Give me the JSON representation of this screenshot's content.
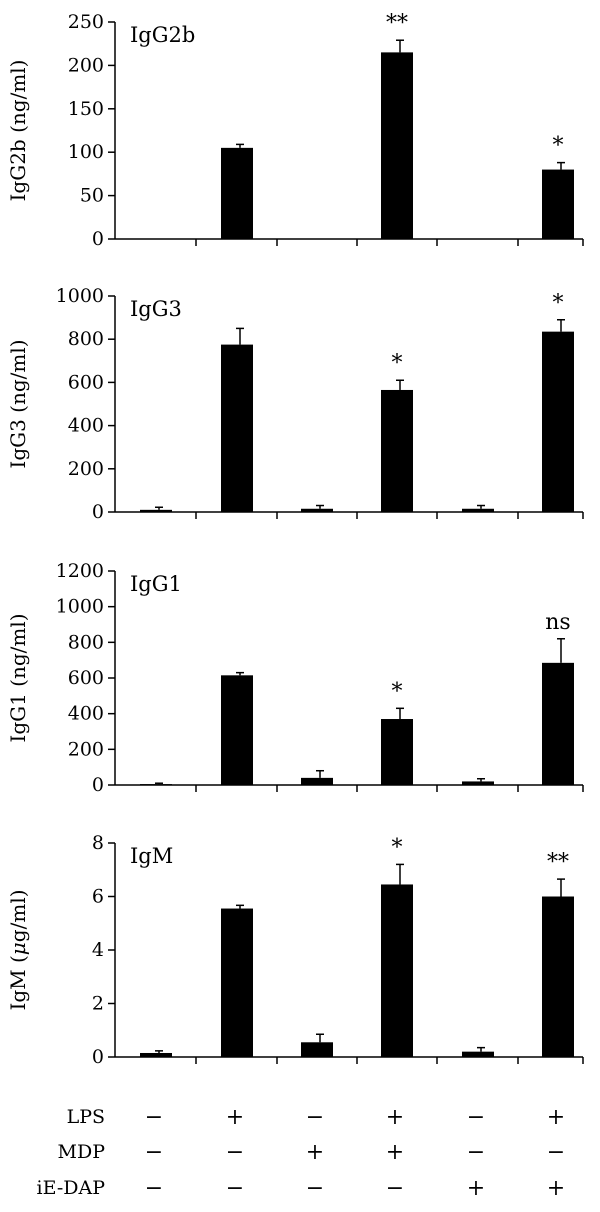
{
  "chart_data": [
    {
      "type": "bar",
      "title": "IgG2b",
      "ylabel": "IgG2b (ng/ml)",
      "ylim": [
        0,
        250
      ],
      "yticks": [
        0,
        50,
        100,
        150,
        200,
        250
      ],
      "values": [
        0,
        105,
        0,
        215,
        0,
        80
      ],
      "errors": [
        0,
        4,
        0,
        14,
        0,
        8
      ],
      "significance": [
        "",
        "",
        "",
        "**",
        "",
        "*"
      ]
    },
    {
      "type": "bar",
      "title": "IgG3",
      "ylabel": "IgG3 (ng/ml)",
      "ylim": [
        0,
        1000
      ],
      "yticks": [
        0,
        200,
        400,
        600,
        800,
        1000
      ],
      "values": [
        10,
        775,
        15,
        565,
        15,
        835
      ],
      "errors": [
        12,
        75,
        15,
        45,
        15,
        55
      ],
      "significance": [
        "",
        "",
        "",
        "*",
        "",
        "*"
      ]
    },
    {
      "type": "bar",
      "title": "IgG1",
      "ylabel": "IgG1 (ng/ml)",
      "ylim": [
        0,
        1200
      ],
      "yticks": [
        0,
        200,
        400,
        600,
        800,
        1000,
        1200
      ],
      "values": [
        5,
        615,
        40,
        370,
        20,
        685
      ],
      "errors": [
        5,
        15,
        40,
        60,
        15,
        135
      ],
      "significance": [
        "",
        "",
        "",
        "*",
        "",
        "ns"
      ]
    },
    {
      "type": "bar",
      "title": "IgM",
      "ylabel_prefix": "IgM (",
      "ylabel_mu": "μ",
      "ylabel_suffix": "g/ml)",
      "ylim": [
        0,
        8
      ],
      "yticks": [
        0,
        2,
        4,
        6,
        8
      ],
      "values": [
        0.15,
        5.55,
        0.55,
        6.45,
        0.2,
        6.0
      ],
      "errors": [
        0.08,
        0.12,
        0.3,
        0.75,
        0.15,
        0.65
      ],
      "significance": [
        "",
        "",
        "",
        "*",
        "",
        "**"
      ]
    }
  ],
  "conditions": [
    {
      "label": "LPS",
      "signs": [
        "−",
        "+",
        "−",
        "+",
        "−",
        "+"
      ]
    },
    {
      "label": "MDP",
      "signs": [
        "−",
        "−",
        "+",
        "+",
        "−",
        "−"
      ]
    },
    {
      "label": "iE-DAP",
      "signs": [
        "−",
        "−",
        "−",
        "−",
        "+",
        "+"
      ]
    }
  ]
}
